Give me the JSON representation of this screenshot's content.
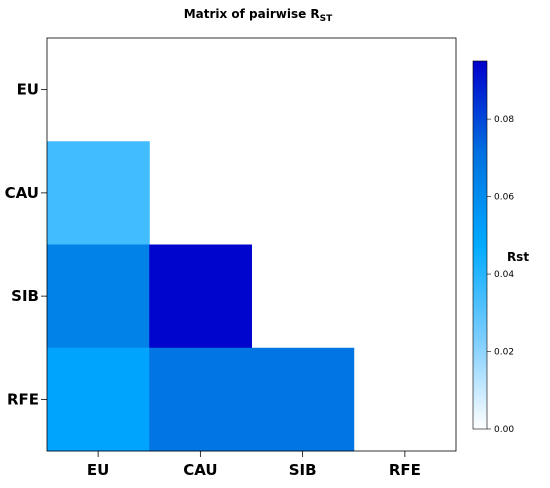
{
  "chart_data": {
    "type": "heatmap",
    "title_main": "Matrix of pairwise R",
    "title_sub": "ST",
    "rows": [
      "EU",
      "CAU",
      "SIB",
      "RFE"
    ],
    "cols": [
      "EU",
      "CAU",
      "SIB",
      "RFE"
    ],
    "values": [
      [
        null,
        null,
        null,
        null
      ],
      [
        0.035,
        null,
        null,
        null
      ],
      [
        0.064,
        0.094,
        null,
        null
      ],
      [
        0.05,
        0.069,
        0.069,
        null
      ]
    ],
    "colorbar": {
      "title": "Rst",
      "min": 0,
      "max": 0.095,
      "ticks": [
        0.0,
        0.02,
        0.04,
        0.06,
        0.08
      ],
      "tick_labels": [
        "0.00",
        "0.02",
        "0.04",
        "0.06",
        "0.08"
      ],
      "colors": [
        "#ffffff",
        "#79ccff",
        "#00aaff",
        "#0070e0",
        "#0000cc"
      ]
    }
  }
}
